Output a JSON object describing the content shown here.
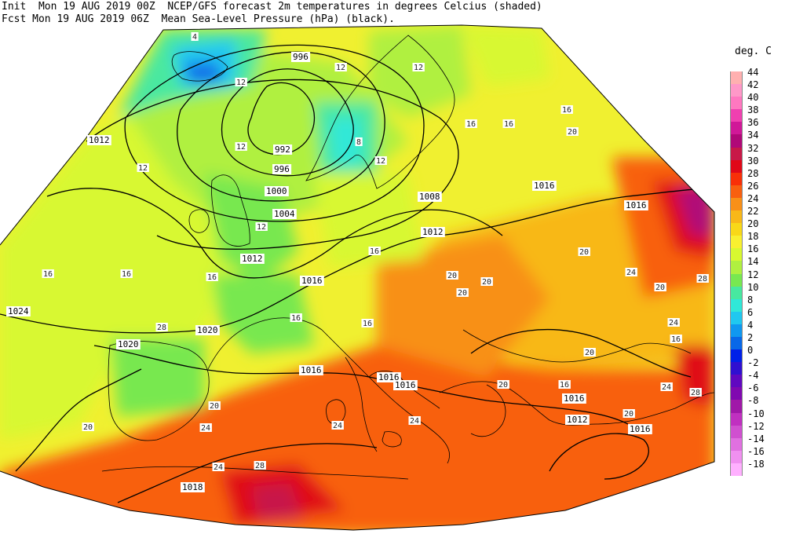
{
  "header": {
    "line1": "Init  Mon 19 AUG 2019 00Z  NCEP/GFS forecast 2m temperatures in degrees Celcius (shaded)",
    "line2": "Fcst Mon 19 AUG 2019 06Z  Mean Sea-Level Pressure (hPa) (black)."
  },
  "legend": {
    "title": "deg. C",
    "items": [
      {
        "label": "44",
        "color": "#ffb0b0"
      },
      {
        "label": "42",
        "color": "#ff98c8"
      },
      {
        "label": "40",
        "color": "#ff78c0"
      },
      {
        "label": "38",
        "color": "#f040b0"
      },
      {
        "label": "36",
        "color": "#d01898"
      },
      {
        "label": "34",
        "color": "#b00878"
      },
      {
        "label": "32",
        "color": "#c81848"
      },
      {
        "label": "30",
        "color": "#e00818"
      },
      {
        "label": "28",
        "color": "#f83008"
      },
      {
        "label": "26",
        "color": "#f86010"
      },
      {
        "label": "24",
        "color": "#f89018"
      },
      {
        "label": "22",
        "color": "#f8b818"
      },
      {
        "label": "20",
        "color": "#f8d818"
      },
      {
        "label": "18",
        "color": "#f8f030"
      },
      {
        "label": "16",
        "color": "#d8f830"
      },
      {
        "label": "14",
        "color": "#b0f040"
      },
      {
        "label": "12",
        "color": "#78e850"
      },
      {
        "label": "10",
        "color": "#48e8a0"
      },
      {
        "label": "8",
        "color": "#30e8d8"
      },
      {
        "label": "6",
        "color": "#20c8f0"
      },
      {
        "label": "4",
        "color": "#1098f0"
      },
      {
        "label": "2",
        "color": "#0868e8"
      },
      {
        "label": "0",
        "color": "#0020e8"
      },
      {
        "label": "-2",
        "color": "#3010d0"
      },
      {
        "label": "-4",
        "color": "#6008c0"
      },
      {
        "label": "-6",
        "color": "#8008b0"
      },
      {
        "label": "-8",
        "color": "#a018a8"
      },
      {
        "label": "-10",
        "color": "#c030c0"
      },
      {
        "label": "-12",
        "color": "#d050d0"
      },
      {
        "label": "-14",
        "color": "#e070e0"
      },
      {
        "label": "-16",
        "color": "#f090f0"
      },
      {
        "label": "-18",
        "color": "#ffb0ff"
      }
    ]
  },
  "isobars": [
    {
      "label": "996",
      "role": "north-atlantic"
    },
    {
      "label": "992",
      "role": "north-sea-low"
    },
    {
      "label": "996",
      "role": "north-sea"
    },
    {
      "label": "1000",
      "role": "british-isles"
    },
    {
      "label": "1004",
      "role": "british-isles-south"
    },
    {
      "label": "1008",
      "role": "baltic"
    },
    {
      "label": "1012",
      "role": "atlantic-west"
    },
    {
      "label": "1012",
      "role": "english-channel"
    },
    {
      "label": "1012",
      "role": "poland"
    },
    {
      "label": "1012",
      "role": "aegean"
    },
    {
      "label": "1016",
      "role": "low-countries"
    },
    {
      "label": "1016",
      "role": "russia"
    },
    {
      "label": "1016",
      "role": "ukraine"
    },
    {
      "label": "1016",
      "role": "gulf-of-lion"
    },
    {
      "label": "1016",
      "role": "adriatic"
    },
    {
      "label": "1016",
      "role": "adriatic-east"
    },
    {
      "label": "1016",
      "role": "balkans"
    },
    {
      "label": "1016",
      "role": "turkey"
    },
    {
      "label": "1018",
      "role": "algeria"
    },
    {
      "label": "1020",
      "role": "bay-of-biscay"
    },
    {
      "label": "1020",
      "role": "iberia-north"
    },
    {
      "label": "1024",
      "role": "azores"
    }
  ],
  "temp_labels": [
    {
      "label": "4"
    },
    {
      "label": "8"
    },
    {
      "label": "12"
    },
    {
      "label": "12"
    },
    {
      "label": "12"
    },
    {
      "label": "12"
    },
    {
      "label": "12"
    },
    {
      "label": "12"
    },
    {
      "label": "12"
    },
    {
      "label": "16"
    },
    {
      "label": "16"
    },
    {
      "label": "16"
    },
    {
      "label": "16"
    },
    {
      "label": "16"
    },
    {
      "label": "16"
    },
    {
      "label": "16"
    },
    {
      "label": "16"
    },
    {
      "label": "16"
    },
    {
      "label": "16"
    },
    {
      "label": "16"
    },
    {
      "label": "20"
    },
    {
      "label": "20"
    },
    {
      "label": "20"
    },
    {
      "label": "20"
    },
    {
      "label": "20"
    },
    {
      "label": "20"
    },
    {
      "label": "20"
    },
    {
      "label": "20"
    },
    {
      "label": "20"
    },
    {
      "label": "20"
    },
    {
      "label": "20"
    },
    {
      "label": "24"
    },
    {
      "label": "24"
    },
    {
      "label": "24"
    },
    {
      "label": "24"
    },
    {
      "label": "24"
    },
    {
      "label": "24"
    },
    {
      "label": "24"
    },
    {
      "label": "28"
    },
    {
      "label": "28"
    },
    {
      "label": "28"
    },
    {
      "label": "28"
    }
  ]
}
